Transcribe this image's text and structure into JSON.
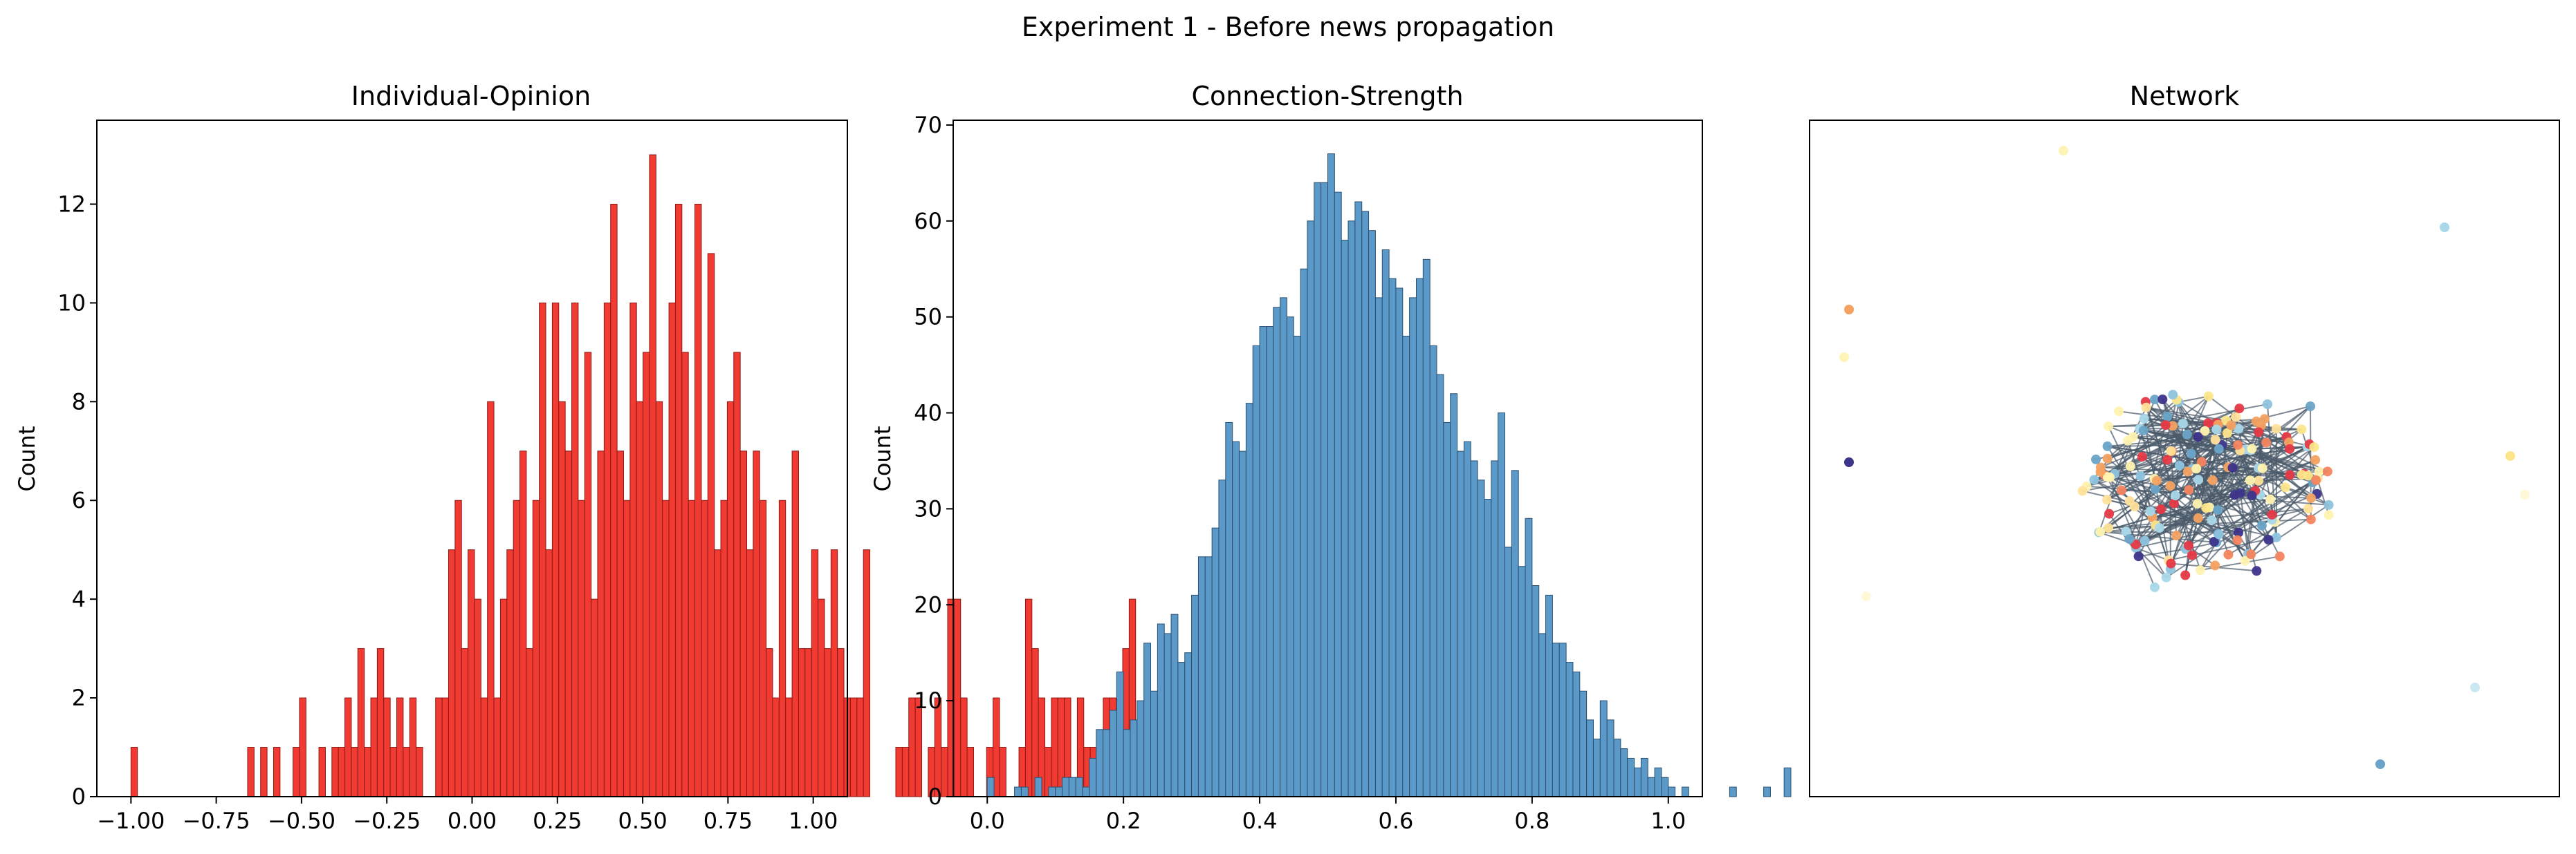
{
  "figure": {
    "suptitle": "Experiment 1 - Before news propagation"
  },
  "colors": {
    "opinion_fill": "#f03a32",
    "opinion_edge": "#8a1a14",
    "strength_fill": "#5b9ac8",
    "strength_edge": "#2b4f70",
    "edge_color": "#4a5a6a"
  },
  "chart_data": [
    {
      "type": "bar",
      "title": "Individual-Opinion",
      "xlabel": "",
      "ylabel": "Count",
      "xlim": [
        -1.1,
        1.1
      ],
      "ylim": [
        0,
        13.7
      ],
      "x_ticks": [
        -1.0,
        -0.75,
        -0.5,
        -0.25,
        0.0,
        0.25,
        0.5,
        0.75,
        1.0
      ],
      "x_tick_labels": [
        "−1.00",
        "−0.75",
        "−0.50",
        "−0.25",
        "0.00",
        "0.25",
        "0.50",
        "0.75",
        "1.00"
      ],
      "y_ticks": [
        0,
        2,
        4,
        6,
        8,
        10,
        12
      ],
      "y_tick_labels": [
        "0",
        "2",
        "4",
        "6",
        "8",
        "10",
        "12"
      ],
      "bin_start": -1.0,
      "bin_width": 0.019,
      "values": [
        1,
        0,
        0,
        0,
        0,
        0,
        0,
        0,
        0,
        0,
        0,
        0,
        0,
        0,
        0,
        0,
        0,
        0,
        1,
        0,
        1,
        0,
        1,
        0,
        0,
        1,
        2,
        0,
        0,
        1,
        0,
        1,
        1,
        2,
        1,
        3,
        1,
        2,
        3,
        2,
        1,
        2,
        1,
        2,
        1,
        0,
        0,
        2,
        2,
        5,
        6,
        3,
        5,
        4,
        2,
        8,
        2,
        4,
        5,
        6,
        7,
        3,
        6,
        10,
        5,
        10,
        8,
        7,
        10,
        6,
        9,
        4,
        7,
        10,
        12,
        7,
        6,
        10,
        8,
        9,
        13,
        8,
        6,
        10,
        12,
        9,
        6,
        12,
        6,
        11,
        5,
        6,
        8,
        9,
        7,
        5,
        7,
        6,
        3,
        2,
        6,
        2,
        7,
        3,
        3,
        5,
        4,
        3,
        5,
        3,
        2,
        2,
        2,
        5,
        0,
        0,
        0,
        0,
        1,
        1,
        2,
        2,
        0,
        1,
        2,
        1,
        4,
        4,
        2,
        1,
        0,
        0,
        1,
        2,
        1,
        0,
        0,
        1,
        4,
        3,
        2,
        1,
        2,
        2,
        2,
        0,
        2,
        1,
        1,
        0,
        2,
        2,
        0,
        3,
        4,
        0,
        1,
        1,
        1,
        2,
        1,
        0,
        1,
        0,
        1,
        1,
        0,
        0,
        1,
        1,
        2,
        0,
        1,
        1,
        1,
        2,
        1,
        0,
        0,
        0,
        1,
        1,
        0,
        0,
        1,
        0,
        0,
        1,
        0,
        0,
        0,
        1,
        0,
        1
      ]
    },
    {
      "type": "bar",
      "title": "Connection-Strength",
      "xlabel": "",
      "ylabel": "Count",
      "xlim": [
        -0.05,
        1.05
      ],
      "ylim": [
        0,
        70.5
      ],
      "x_ticks": [
        0.0,
        0.2,
        0.4,
        0.6,
        0.8,
        1.0
      ],
      "x_tick_labels": [
        "0.0",
        "0.2",
        "0.4",
        "0.6",
        "0.8",
        "1.0"
      ],
      "y_ticks": [
        0,
        10,
        20,
        30,
        40,
        50,
        60,
        70
      ],
      "y_tick_labels": [
        "0",
        "10",
        "20",
        "30",
        "40",
        "50",
        "60",
        "70"
      ],
      "bin_start": 0.0,
      "bin_width": 0.01,
      "values": [
        2,
        0,
        0,
        0,
        1,
        1,
        0,
        2,
        0,
        1,
        1,
        2,
        2,
        2,
        1,
        4,
        7,
        7,
        9,
        13,
        7,
        8,
        10,
        16,
        11,
        18,
        17,
        19,
        14,
        15,
        21,
        25,
        25,
        28,
        33,
        39,
        37,
        36,
        41,
        47,
        49,
        49,
        51,
        52,
        50,
        48,
        55,
        60,
        64,
        64,
        67,
        63,
        58,
        60,
        62,
        61,
        59,
        52,
        57,
        54,
        53,
        48,
        52,
        54,
        56,
        47,
        44,
        39,
        42,
        36,
        37,
        35,
        33,
        31,
        35,
        40,
        26,
        34,
        24,
        29,
        22,
        17,
        21,
        16,
        16,
        14,
        13,
        11,
        8,
        6,
        10,
        8,
        6,
        5,
        4,
        3,
        4,
        2,
        3,
        2,
        1,
        0,
        1,
        0,
        0,
        0,
        0,
        0,
        0,
        1,
        0,
        0,
        0,
        0,
        1,
        0,
        0,
        3
      ]
    }
  ],
  "network": {
    "title": "Network",
    "node_colors": [
      "#f4a261",
      "#fde68a",
      "#fff3b0",
      "#a8d8ea",
      "#8ec3de",
      "#e63946",
      "#f4845f",
      "#3d348b",
      "#6aa4c8",
      "#ffe29a"
    ]
  }
}
